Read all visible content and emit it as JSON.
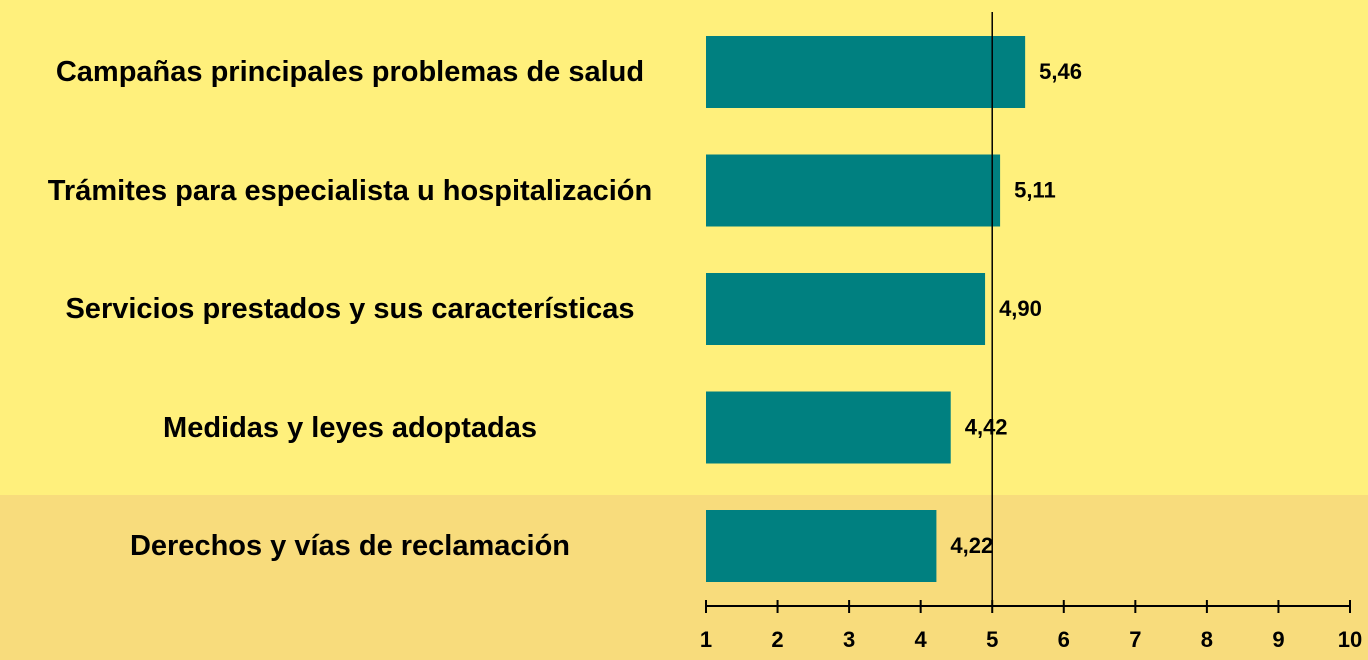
{
  "chart_data": {
    "type": "hbar",
    "categories": [
      "Campañas principales problemas de salud",
      "Trámites para especialista u hospitalización",
      "Servicios prestados y sus características",
      "Medidas y leyes adoptadas",
      "Derechos y vías de reclamación"
    ],
    "values": [
      5.46,
      5.11,
      4.9,
      4.42,
      4.22
    ],
    "value_labels": [
      "5,46",
      "5,11",
      "4,90",
      "4,42",
      "4,22"
    ],
    "color": "#008080",
    "xlim": [
      1,
      10
    ],
    "xticks": [
      1,
      2,
      3,
      4,
      5,
      6,
      7,
      8,
      9,
      10
    ],
    "reference_line": 5
  }
}
